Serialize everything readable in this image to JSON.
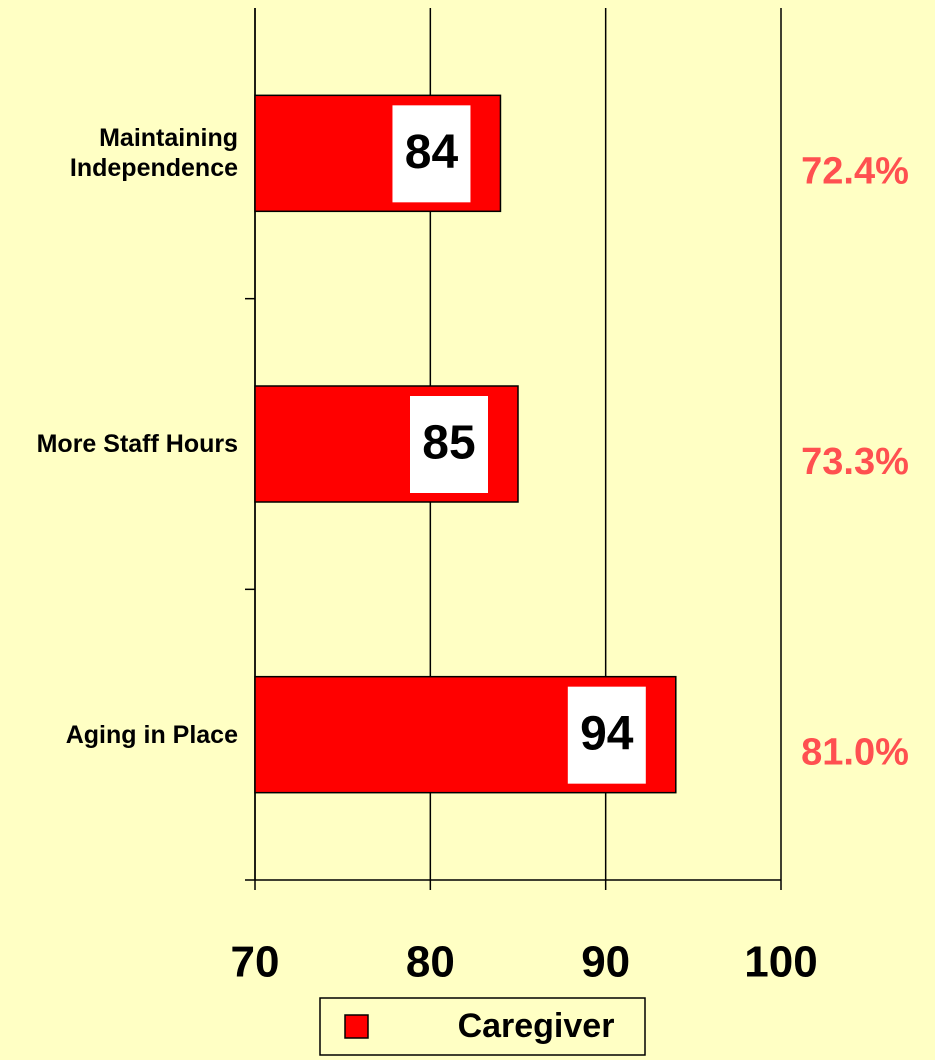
{
  "chart_data": {
    "type": "hbar",
    "categories": [
      "Maintaining Independence",
      "More Staff Hours",
      "Aging in Place"
    ],
    "series": [
      {
        "name": "Caregiver",
        "color": "#ff0000",
        "values": [
          84,
          85,
          94
        ]
      }
    ],
    "xlim": [
      70,
      100
    ],
    "xticks": [
      70,
      80,
      90,
      100
    ],
    "grid": true,
    "legend": "bottom",
    "annotations": [
      "72.4%",
      "73.3%",
      "81.0%"
    ],
    "annotation_color": "#ff5050"
  }
}
